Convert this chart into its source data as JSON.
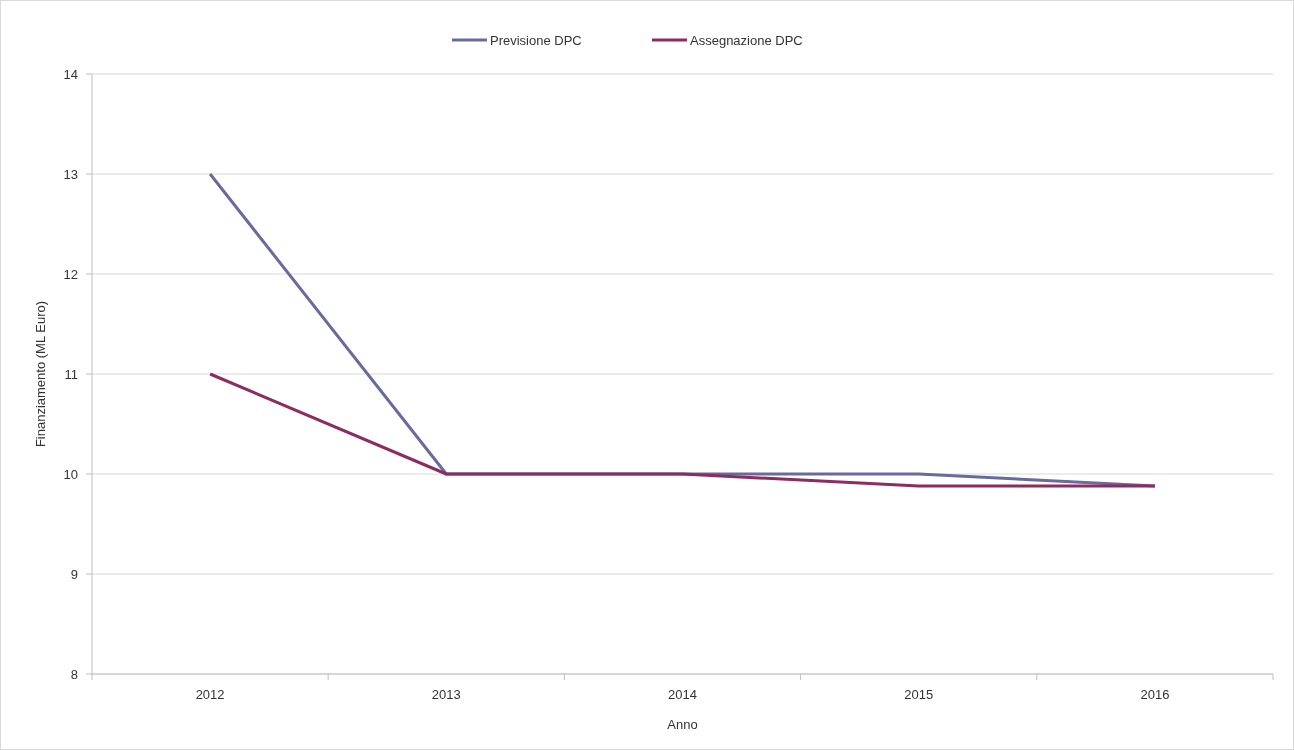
{
  "chart_data": {
    "type": "line",
    "xlabel": "Anno",
    "ylabel": "Finanziamento (ML Euro)",
    "categories": [
      "2012",
      "2013",
      "2014",
      "2015",
      "2016"
    ],
    "series": [
      {
        "name": "Previsione DPC",
        "color": "#6a6a9f",
        "values": [
          13,
          10,
          10,
          10,
          9.88
        ]
      },
      {
        "name": "Assegnazione DPC",
        "color": "#8c2c60",
        "values": [
          11,
          10,
          10,
          9.88,
          9.88
        ]
      }
    ],
    "ylim": [
      8,
      14
    ],
    "yticks": [
      8,
      9,
      10,
      11,
      12,
      13,
      14
    ],
    "grid": "y",
    "legend": "top",
    "marker": "none",
    "line_style": "solid"
  }
}
